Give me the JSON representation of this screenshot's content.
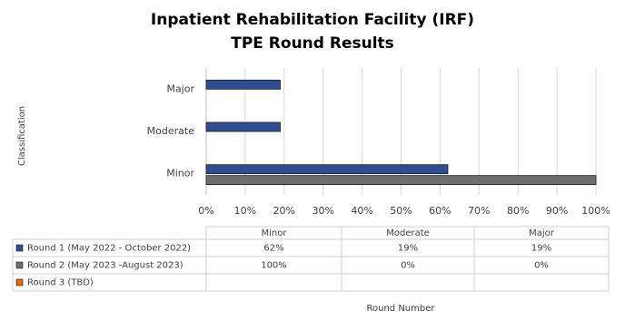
{
  "chart_data": {
    "type": "bar",
    "orientation": "horizontal",
    "title": [
      "Inpatient Rehabilitation Facility (IRF)",
      "TPE Round Results"
    ],
    "y_label": "Classification",
    "x_label": "Round Number",
    "categories": [
      "Minor",
      "Moderate",
      "Major"
    ],
    "series": [
      {
        "name": "Round 1 (May 2022 - October 2022)",
        "color": "#2f4d8f",
        "values": [
          62,
          19,
          19
        ],
        "value_labels": [
          "62%",
          "19%",
          "19%"
        ]
      },
      {
        "name": "Round 2 (May 2023 -August 2023)",
        "color": "#6e6e6e",
        "values": [
          100,
          0,
          0
        ],
        "value_labels": [
          "100%",
          "0%",
          "0%"
        ]
      },
      {
        "name": "Round 3 (TBD)",
        "color": "#e36c0a",
        "values": [
          null,
          null,
          null
        ]
      }
    ],
    "xlim": [
      0,
      100
    ],
    "xticks": [
      {
        "value": 0,
        "label": "0%"
      },
      {
        "value": 10,
        "label": "10%"
      },
      {
        "value": 20,
        "label": "20%"
      },
      {
        "value": 30,
        "label": "30%"
      },
      {
        "value": 40,
        "label": "40%"
      },
      {
        "value": 50,
        "label": "50%"
      },
      {
        "value": 60,
        "label": "60%"
      },
      {
        "value": 70,
        "label": "70%"
      },
      {
        "value": 80,
        "label": "80%"
      },
      {
        "value": 90,
        "label": "90%"
      },
      {
        "value": 100,
        "label": "100%"
      }
    ],
    "grid": true
  }
}
